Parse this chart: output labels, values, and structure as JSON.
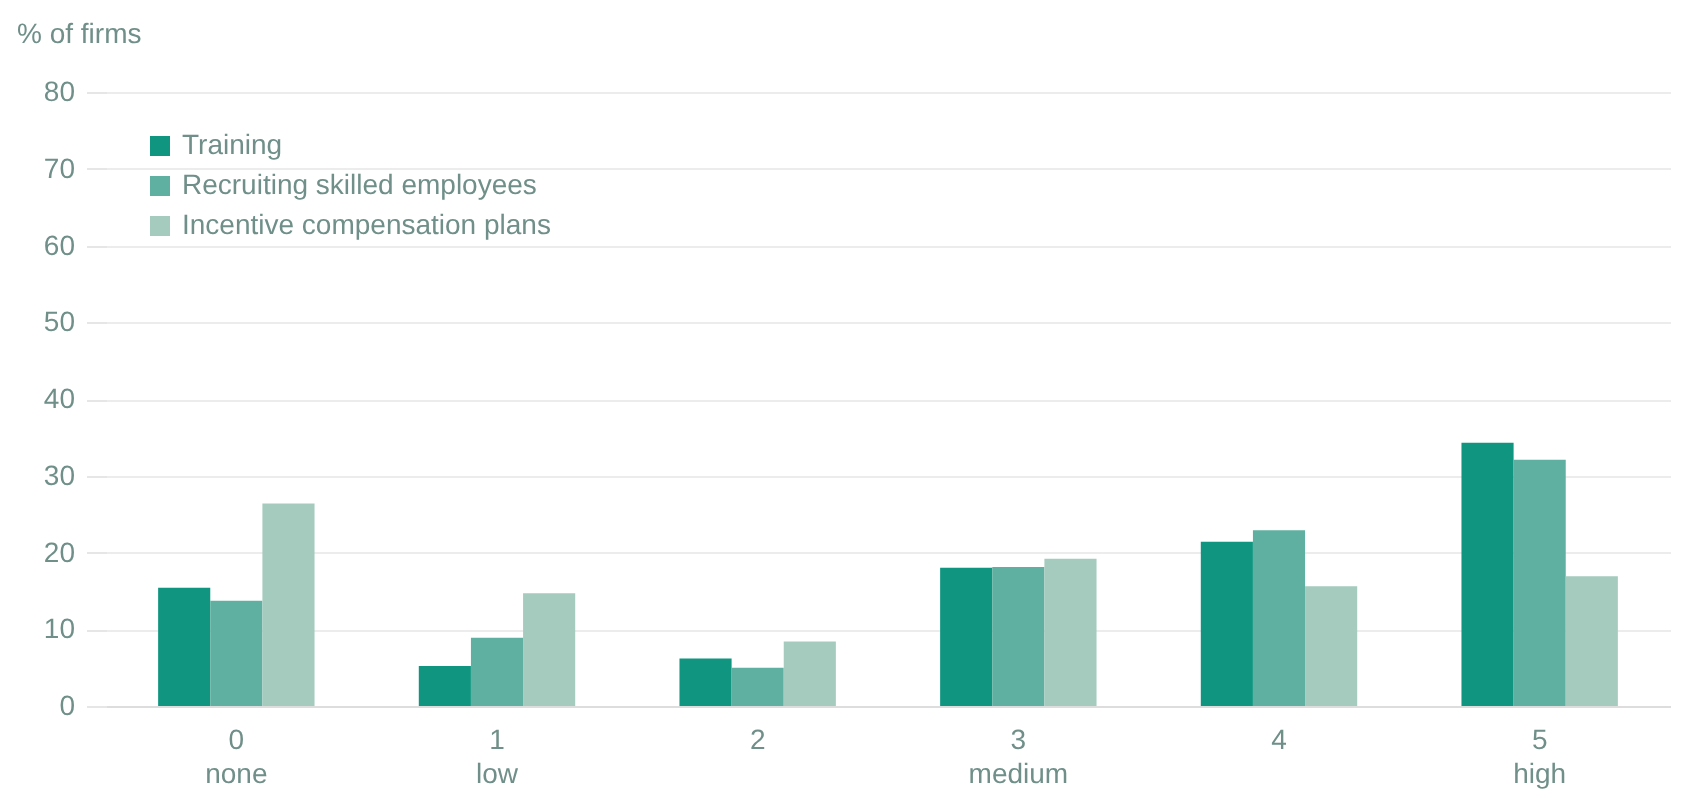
{
  "chart_data": {
    "type": "bar",
    "ylabel": "% of firms",
    "categories": [
      "0\nnone",
      "1\nlow",
      "2",
      "3\nmedium",
      "4",
      "5\nhigh"
    ],
    "series": [
      {
        "name": "Training",
        "color": "#0f9580",
        "values": [
          15.4,
          5.2,
          6.2,
          18,
          21.4,
          34.3
        ]
      },
      {
        "name": "Recruiting skilled employees",
        "color": "#5fb0a0",
        "values": [
          13.7,
          8.9,
          5,
          18.1,
          22.9,
          32.1
        ]
      },
      {
        "name": "Incentive compensation plans",
        "color": "#a5cbbf",
        "values": [
          26.4,
          14.7,
          8.4,
          19.2,
          15.6,
          16.9
        ]
      }
    ],
    "ylim": [
      0,
      80
    ],
    "yticks": [
      0,
      10,
      20,
      30,
      40,
      50,
      60,
      70,
      80
    ],
    "grid": "y",
    "legend": "top left"
  }
}
